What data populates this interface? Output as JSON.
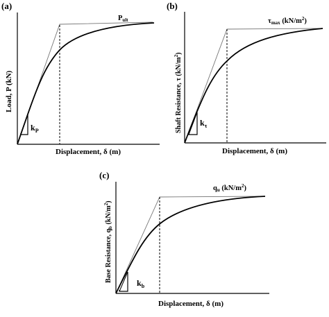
{
  "panels": [
    {
      "id": "a",
      "label": "(a)",
      "ylabel": "Load, P (kN)",
      "xlabel": "Displacement, δ (m)",
      "ultimate_label_main": "P",
      "ultimate_label_sub": "ult",
      "ultimate_label_tail": "",
      "slope_label_main": "k",
      "slope_label_sub": "P"
    },
    {
      "id": "b",
      "label": "(b)",
      "ylabel_parts": [
        "Shaft Resistance, τ (kN/m",
        "2",
        ")"
      ],
      "xlabel": "Displacement, δ (m)",
      "ultimate_label_main": "τ",
      "ultimate_label_sub": "max",
      "ultimate_label_tail": " (kN/m",
      "ultimate_label_sup": "2",
      "ultimate_label_close": ")",
      "slope_label_main": "k",
      "slope_label_sub": "τ"
    },
    {
      "id": "c",
      "label": "(c)",
      "ylabel_parts": [
        "Base Resistance, q",
        "b",
        " (kN/m",
        "2",
        ")"
      ],
      "xlabel": "Displacement, δ (m)",
      "ultimate_label_main": "q",
      "ultimate_label_sub": "u",
      "ultimate_label_tail": " (kN/m",
      "ultimate_label_sup": "2",
      "ultimate_label_close": ")",
      "slope_label_main": "k",
      "slope_label_sub": "b"
    }
  ]
}
